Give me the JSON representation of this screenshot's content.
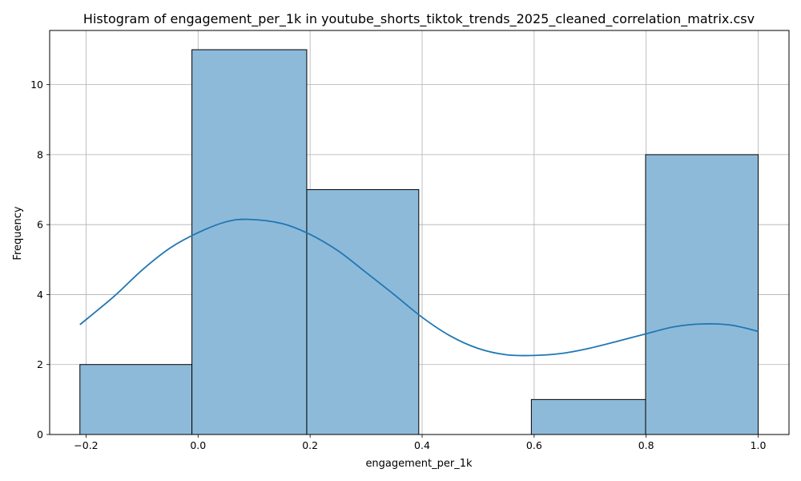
{
  "chart_data": {
    "type": "bar",
    "subtype": "histogram",
    "title": "Histogram of engagement_per_1k in youtube_shorts_tiktok_trends_2025_cleaned_correlation_matrix.csv",
    "xlabel": "engagement_per_1k",
    "ylabel": "Frequency",
    "xlim": [
      -0.265,
      1.055
    ],
    "ylim": [
      0,
      11.55
    ],
    "xticks": [
      -0.2,
      0.0,
      0.2,
      0.4,
      0.6,
      0.8,
      1.0
    ],
    "xtick_labels": [
      "−0.2",
      "0.0",
      "0.2",
      "0.4",
      "0.6",
      "0.8",
      "1.0"
    ],
    "yticks": [
      0,
      2,
      4,
      6,
      8,
      10
    ],
    "ytick_labels": [
      "0",
      "2",
      "4",
      "6",
      "8",
      "10"
    ],
    "grid": true,
    "bins": [
      {
        "x0": -0.211,
        "x1": -0.011,
        "count": 2
      },
      {
        "x0": -0.011,
        "x1": 0.194,
        "count": 11
      },
      {
        "x0": 0.194,
        "x1": 0.394,
        "count": 7
      },
      {
        "x0": 0.394,
        "x1": 0.595,
        "count": 0
      },
      {
        "x0": 0.595,
        "x1": 0.799,
        "count": 1
      },
      {
        "x0": 0.799,
        "x1": 1.0,
        "count": 8
      }
    ],
    "kde": {
      "x": [
        -0.211,
        -0.15,
        -0.1,
        -0.05,
        0.0,
        0.05,
        0.09,
        0.15,
        0.2,
        0.25,
        0.3,
        0.35,
        0.4,
        0.45,
        0.5,
        0.55,
        0.6,
        0.65,
        0.7,
        0.75,
        0.8,
        0.85,
        0.9,
        0.95,
        1.0
      ],
      "y": [
        3.14,
        3.95,
        4.7,
        5.33,
        5.77,
        6.08,
        6.15,
        6.03,
        5.72,
        5.25,
        4.63,
        4.0,
        3.35,
        2.82,
        2.46,
        2.28,
        2.26,
        2.32,
        2.47,
        2.67,
        2.88,
        3.08,
        3.16,
        3.13,
        2.95
      ]
    },
    "colors": {
      "bar_fill": "#8ebad9",
      "bar_edge": "#000000",
      "kde_line": "#1f77b4",
      "grid": "#b0b0b0"
    }
  }
}
